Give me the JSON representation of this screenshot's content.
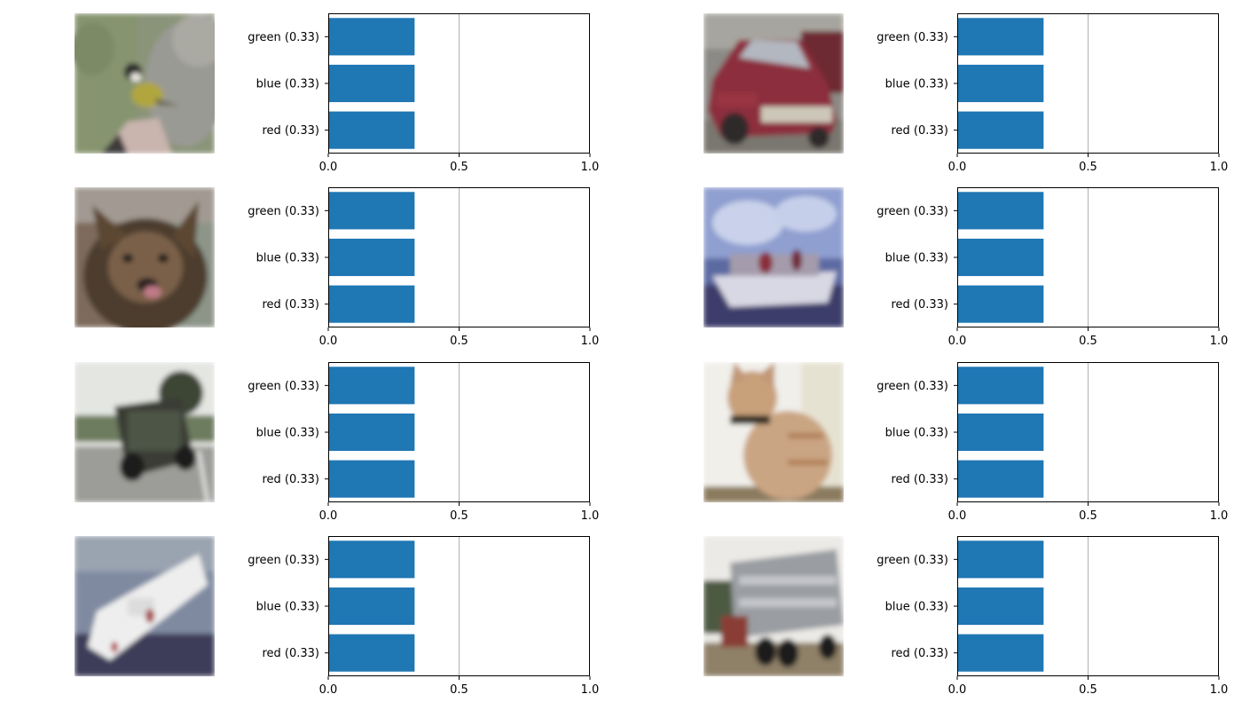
{
  "colors": {
    "bar": "#1f77b4",
    "axis": "#000000",
    "refline": "#b0b0b0",
    "background": "#ffffff"
  },
  "panels": [
    {
      "image": "bird-photo"
    },
    {
      "image": "car-photo"
    },
    {
      "image": "dog-photo"
    },
    {
      "image": "boat-photo"
    },
    {
      "image": "truck-photo"
    },
    {
      "image": "cat-photo"
    },
    {
      "image": "ship-photo"
    },
    {
      "image": "dump-truck-photo"
    }
  ],
  "chart_data": [
    {
      "type": "bar",
      "orientation": "horizontal",
      "categories": [
        "red (0.33)",
        "blue (0.33)",
        "green (0.33)"
      ],
      "values": [
        0.33,
        0.33,
        0.33
      ],
      "xlim": [
        0,
        1
      ],
      "xticks": [
        "0.0",
        "0.5",
        "1.0"
      ],
      "reference_line": 0.5
    },
    {
      "type": "bar",
      "orientation": "horizontal",
      "categories": [
        "red (0.33)",
        "blue (0.33)",
        "green (0.33)"
      ],
      "values": [
        0.33,
        0.33,
        0.33
      ],
      "xlim": [
        0,
        1
      ],
      "xticks": [
        "0.0",
        "0.5",
        "1.0"
      ],
      "reference_line": 0.5
    },
    {
      "type": "bar",
      "orientation": "horizontal",
      "categories": [
        "red (0.33)",
        "blue (0.33)",
        "green (0.33)"
      ],
      "values": [
        0.33,
        0.33,
        0.33
      ],
      "xlim": [
        0,
        1
      ],
      "xticks": [
        "0.0",
        "0.5",
        "1.0"
      ],
      "reference_line": 0.5
    },
    {
      "type": "bar",
      "orientation": "horizontal",
      "categories": [
        "red (0.33)",
        "blue (0.33)",
        "green (0.33)"
      ],
      "values": [
        0.33,
        0.33,
        0.33
      ],
      "xlim": [
        0,
        1
      ],
      "xticks": [
        "0.0",
        "0.5",
        "1.0"
      ],
      "reference_line": 0.5
    },
    {
      "type": "bar",
      "orientation": "horizontal",
      "categories": [
        "red (0.33)",
        "blue (0.33)",
        "green (0.33)"
      ],
      "values": [
        0.33,
        0.33,
        0.33
      ],
      "xlim": [
        0,
        1
      ],
      "xticks": [
        "0.0",
        "0.5",
        "1.0"
      ],
      "reference_line": 0.5
    },
    {
      "type": "bar",
      "orientation": "horizontal",
      "categories": [
        "red (0.33)",
        "blue (0.33)",
        "green (0.33)"
      ],
      "values": [
        0.33,
        0.33,
        0.33
      ],
      "xlim": [
        0,
        1
      ],
      "xticks": [
        "0.0",
        "0.5",
        "1.0"
      ],
      "reference_line": 0.5
    },
    {
      "type": "bar",
      "orientation": "horizontal",
      "categories": [
        "red (0.33)",
        "blue (0.33)",
        "green (0.33)"
      ],
      "values": [
        0.33,
        0.33,
        0.33
      ],
      "xlim": [
        0,
        1
      ],
      "xticks": [
        "0.0",
        "0.5",
        "1.0"
      ],
      "reference_line": 0.5
    },
    {
      "type": "bar",
      "orientation": "horizontal",
      "categories": [
        "red (0.33)",
        "blue (0.33)",
        "green (0.33)"
      ],
      "values": [
        0.33,
        0.33,
        0.33
      ],
      "xlim": [
        0,
        1
      ],
      "xticks": [
        "0.0",
        "0.5",
        "1.0"
      ],
      "reference_line": 0.5
    }
  ]
}
